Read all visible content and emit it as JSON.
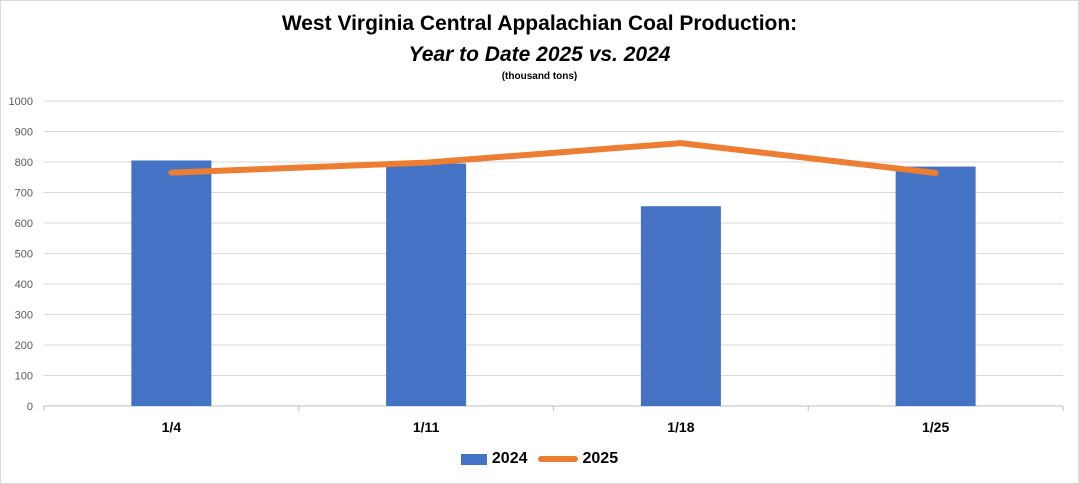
{
  "chart_data": {
    "type": "bar",
    "title": "West Virginia Central Appalachian Coal Production:",
    "subtitle": "Year to Date 2025 vs. 2024",
    "unit_note": "(thousand tons)",
    "categories": [
      "1/4",
      "1/11",
      "1/18",
      "1/25"
    ],
    "series": [
      {
        "name": "2024",
        "type": "bar",
        "color": "#4472c4",
        "values": [
          805,
          795,
          655,
          785
        ]
      },
      {
        "name": "2025",
        "type": "line",
        "color": "#ed7d31",
        "values": [
          765,
          798,
          862,
          764
        ]
      }
    ],
    "ylim": [
      0,
      1000
    ],
    "yticks": [
      0,
      100,
      200,
      300,
      400,
      500,
      600,
      700,
      800,
      900,
      1000
    ],
    "grid": true,
    "legend_position": "bottom"
  }
}
